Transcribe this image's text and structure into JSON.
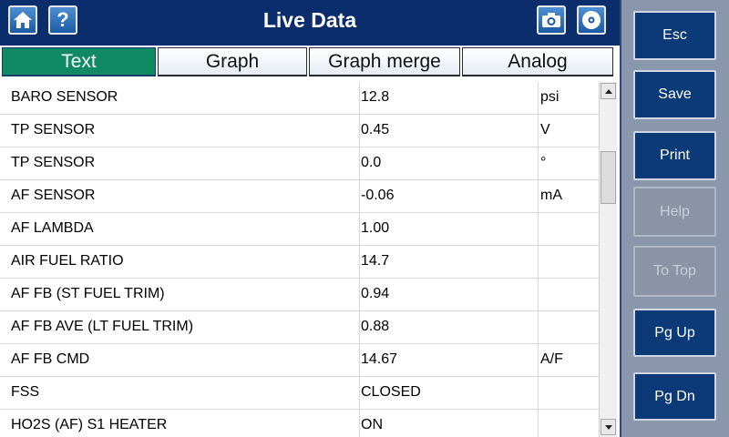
{
  "header": {
    "title": "Live Data",
    "help_label": "?",
    "icons": [
      "home-icon",
      "camera-icon",
      "disc-icon"
    ]
  },
  "tabs": [
    {
      "label": "Text",
      "active": true
    },
    {
      "label": "Graph",
      "active": false
    },
    {
      "label": "Graph merge",
      "active": false
    },
    {
      "label": "Analog",
      "active": false
    }
  ],
  "rows": [
    {
      "name": "BARO SENSOR",
      "value": "12.8",
      "unit": "psi"
    },
    {
      "name": "TP SENSOR",
      "value": "0.45",
      "unit": "V"
    },
    {
      "name": "TP SENSOR",
      "value": "0.0",
      "unit": "°"
    },
    {
      "name": "AF SENSOR",
      "value": "-0.06",
      "unit": "mA"
    },
    {
      "name": "AF LAMBDA",
      "value": "1.00",
      "unit": ""
    },
    {
      "name": "AIR FUEL RATIO",
      "value": "14.7",
      "unit": ""
    },
    {
      "name": "AF FB (ST FUEL TRIM)",
      "value": "0.94",
      "unit": ""
    },
    {
      "name": "AF FB AVE (LT FUEL TRIM)",
      "value": "0.88",
      "unit": ""
    },
    {
      "name": "AF FB CMD",
      "value": "14.67",
      "unit": "A/F"
    },
    {
      "name": "FSS",
      "value": "CLOSED",
      "unit": ""
    },
    {
      "name": "HO2S (AF) S1 HEATER",
      "value": "ON",
      "unit": ""
    }
  ],
  "side_buttons": [
    {
      "label": "Esc",
      "enabled": true
    },
    {
      "label": "Save",
      "enabled": true
    },
    {
      "label": "Print",
      "enabled": true
    },
    {
      "label": "Help",
      "enabled": false
    },
    {
      "label": "To Top",
      "enabled": false
    },
    {
      "label": "Pg Up",
      "enabled": true
    },
    {
      "label": "Pg Dn",
      "enabled": true
    }
  ],
  "colors": {
    "header_bg": "#0b2d6b",
    "active_tab": "#0f8a63",
    "side_button": "#0c3a78",
    "side_panel": "#8a96ab"
  }
}
